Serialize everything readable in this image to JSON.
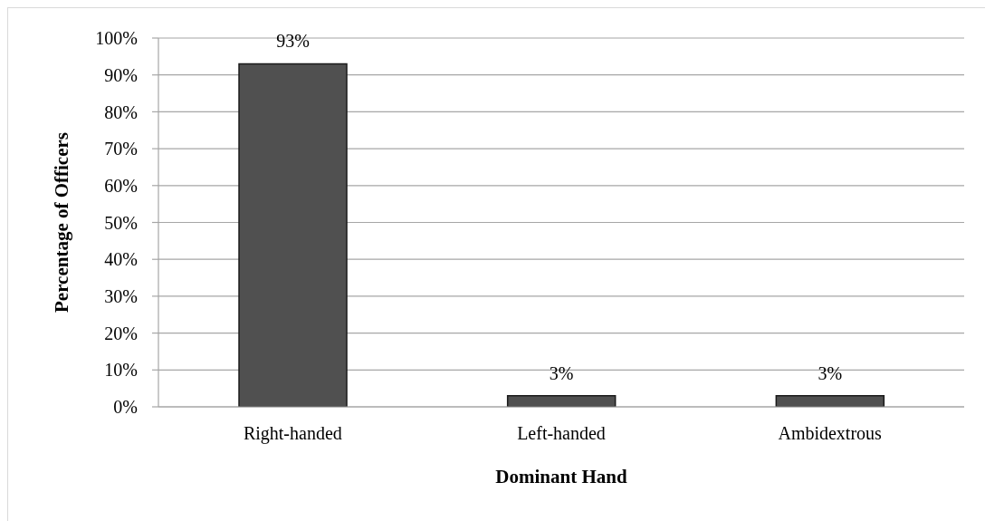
{
  "chart_data": {
    "type": "bar",
    "xlabel": "Dominant Hand",
    "ylabel": "Percentage of Officers",
    "categories": [
      "Right-handed",
      "Left-handed",
      "Ambidextrous"
    ],
    "values": [
      93,
      3,
      3
    ],
    "value_labels": [
      "93%",
      "3%",
      "3%"
    ],
    "color": "#505050",
    "ylim": [
      0,
      100
    ],
    "yticks": [
      {
        "value": 0,
        "label": "0%"
      },
      {
        "value": 10,
        "label": "10%"
      },
      {
        "value": 20,
        "label": "20%"
      },
      {
        "value": 30,
        "label": "30%"
      },
      {
        "value": 40,
        "label": "40%"
      },
      {
        "value": 50,
        "label": "50%"
      },
      {
        "value": 60,
        "label": "60%"
      },
      {
        "value": 70,
        "label": "70%"
      },
      {
        "value": 80,
        "label": "80%"
      },
      {
        "value": 90,
        "label": "90%"
      },
      {
        "value": 100,
        "label": "100%"
      }
    ],
    "grid": "y"
  }
}
